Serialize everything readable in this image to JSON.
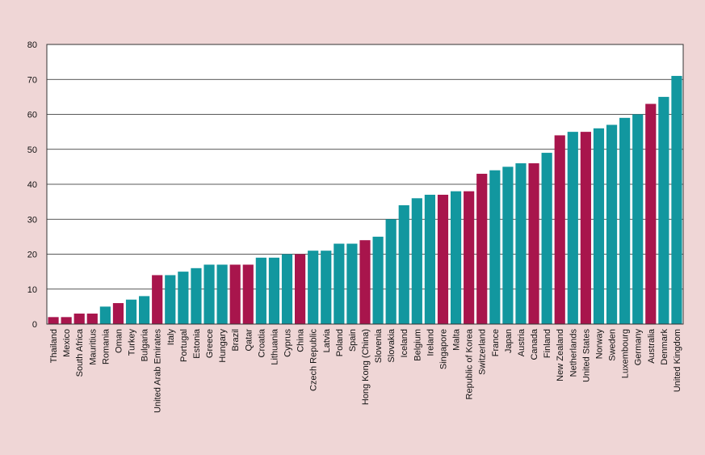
{
  "chart_data": {
    "type": "bar",
    "title": "",
    "xlabel": "",
    "ylabel": "",
    "ylim": [
      0,
      80
    ],
    "yticks": [
      0,
      10,
      20,
      30,
      40,
      50,
      60,
      70,
      80
    ],
    "grid": true,
    "colors": {
      "teal": "#12979f",
      "crimson": "#a8154c",
      "background": "#efd6d6",
      "plot_bg": "#ffffff"
    },
    "categories": [
      "Thailand",
      "Mexico",
      "South Africa",
      "Mauritius",
      "Romania",
      "Oman",
      "Turkey",
      "Bulgaria",
      "United Arab Emirates",
      "Italy",
      "Portugal",
      "Estonia",
      "Greece",
      "Hungary",
      "Brazil",
      "Qatar",
      "Croatia",
      "Lithuania",
      "Cyprus",
      "China",
      "Czech Republic",
      "Latvia",
      "Poland",
      "Spain",
      "Hong Kong (China)",
      "Slovenia",
      "Slovakia",
      "Iceland",
      "Belgium",
      "Ireland",
      "Singapore",
      "Malta",
      "Republic of Korea",
      "Switzerland",
      "France",
      "Japan",
      "Austria",
      "Canada",
      "Finland",
      "New Zealand",
      "Netherlands",
      "United States",
      "Norway",
      "Sweden",
      "Luxembourg",
      "Germany",
      "Australia",
      "Denmark",
      "United Kingdom"
    ],
    "values": [
      2,
      2,
      3,
      3,
      5,
      6,
      7,
      8,
      14,
      14,
      15,
      16,
      17,
      17,
      17,
      17,
      19,
      19,
      20,
      20,
      21,
      21,
      23,
      23,
      24,
      25,
      30,
      34,
      36,
      37,
      37,
      38,
      38,
      43,
      44,
      45,
      46,
      46,
      49,
      54,
      55,
      55,
      56,
      57,
      59,
      60,
      63,
      65,
      71
    ],
    "bar_colors": [
      "crimson",
      "crimson",
      "crimson",
      "crimson",
      "teal",
      "crimson",
      "teal",
      "teal",
      "crimson",
      "teal",
      "teal",
      "teal",
      "teal",
      "teal",
      "crimson",
      "crimson",
      "teal",
      "teal",
      "teal",
      "crimson",
      "teal",
      "teal",
      "teal",
      "teal",
      "crimson",
      "teal",
      "teal",
      "teal",
      "teal",
      "teal",
      "crimson",
      "teal",
      "crimson",
      "crimson",
      "teal",
      "teal",
      "teal",
      "crimson",
      "teal",
      "crimson",
      "teal",
      "crimson",
      "teal",
      "teal",
      "teal",
      "teal",
      "crimson",
      "teal",
      "teal"
    ]
  }
}
